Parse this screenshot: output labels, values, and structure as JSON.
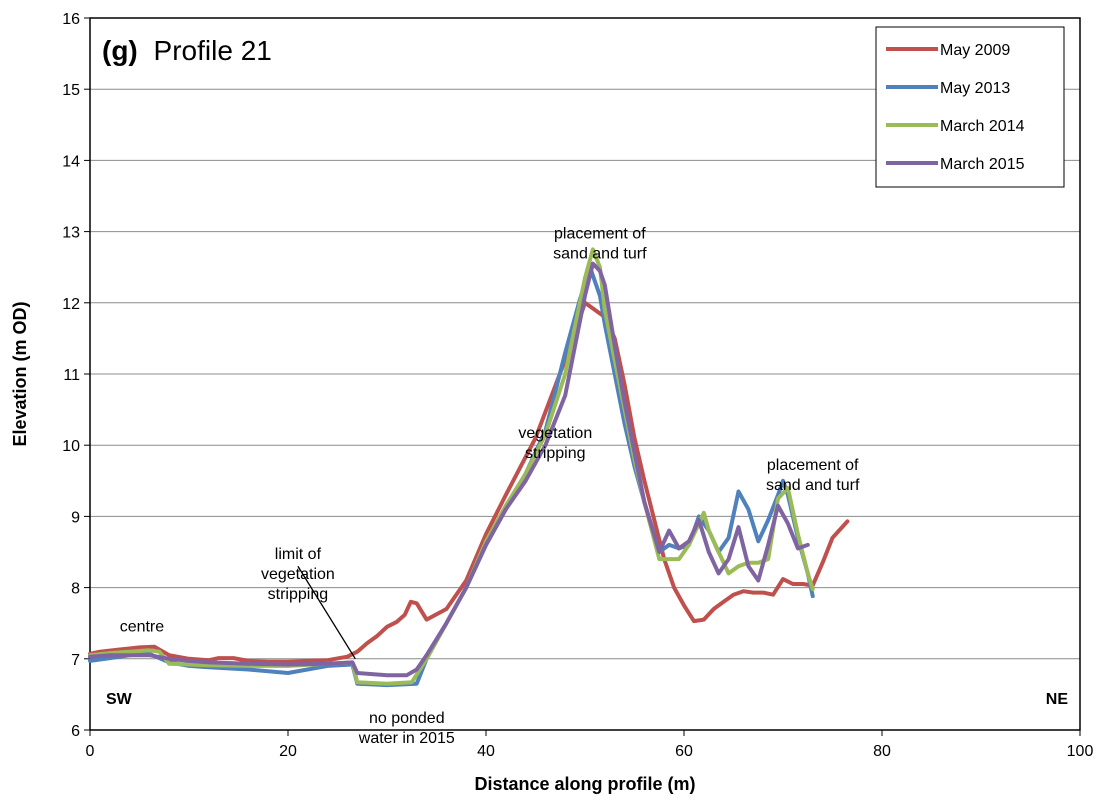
{
  "chart_data": {
    "type": "line",
    "title_letter": "(g)",
    "title_text": "Profile 21",
    "xlabel": "Distance along profile (m)",
    "ylabel": "Elevation (m OD)",
    "xlim": [
      0,
      100
    ],
    "ylim": [
      6,
      16
    ],
    "xticks": [
      0,
      20,
      40,
      60,
      80,
      100
    ],
    "yticks": [
      6,
      7,
      8,
      9,
      10,
      11,
      12,
      13,
      14,
      15,
      16
    ],
    "grid": "horizontal",
    "legend_position": "top-right",
    "corner_labels": {
      "left": "SW",
      "right": "NE"
    },
    "annotations": [
      {
        "lines": [
          "centre"
        ],
        "x": 3,
        "y": 7.38
      },
      {
        "lines": [
          "limit of",
          "vegetation",
          "stripping"
        ],
        "x": 21,
        "y": 8.4
      },
      {
        "lines": [
          "no ponded",
          "water in 2015"
        ],
        "x": 32,
        "y": 6.1
      },
      {
        "lines": [
          "vegetation",
          "stripping"
        ],
        "x": 47,
        "y": 10.1
      },
      {
        "lines": [
          "placement of",
          "sand and turf"
        ],
        "x": 51.5,
        "y": 12.9
      },
      {
        "lines": [
          "placement of",
          "sand and turf"
        ],
        "x": 73,
        "y": 9.65
      }
    ],
    "pointer": {
      "from": [
        21,
        8.3
      ],
      "to": [
        26.8,
        7.0
      ]
    },
    "series": [
      {
        "name": "May 2009",
        "color": "#c0504d",
        "x": [
          0,
          1,
          3,
          5,
          6.5,
          8,
          10,
          12,
          13,
          14.5,
          16,
          18,
          20,
          22,
          24,
          26,
          27,
          28,
          29,
          30,
          31,
          31.8,
          32.4,
          33,
          34,
          36,
          38,
          40,
          42,
          45,
          48,
          50,
          51,
          52,
          53,
          54,
          55,
          56,
          57,
          58,
          59,
          60,
          61,
          62,
          63,
          64,
          65,
          66,
          67,
          68,
          69,
          70,
          71,
          72,
          73,
          74,
          75,
          76.5
        ],
        "y": [
          7.07,
          7.1,
          7.13,
          7.16,
          7.17,
          7.05,
          7.0,
          6.98,
          7.01,
          7.01,
          6.97,
          6.96,
          6.96,
          6.97,
          6.98,
          7.03,
          7.1,
          7.22,
          7.32,
          7.45,
          7.52,
          7.62,
          7.8,
          7.78,
          7.55,
          7.7,
          8.1,
          8.75,
          9.3,
          10.1,
          11.2,
          12.0,
          11.9,
          11.8,
          11.5,
          10.85,
          10.1,
          9.5,
          8.95,
          8.4,
          8.0,
          7.75,
          7.53,
          7.55,
          7.7,
          7.8,
          7.9,
          7.95,
          7.93,
          7.93,
          7.9,
          8.12,
          8.05,
          8.05,
          8.03,
          8.35,
          8.7,
          8.93
        ]
      },
      {
        "name": "May 2013",
        "color": "#4f81bd",
        "x": [
          0,
          2,
          4,
          6,
          8,
          10,
          12,
          16,
          20,
          24,
          26.5,
          27,
          30,
          33,
          34,
          36,
          38,
          40,
          42,
          44,
          46,
          48,
          49.5,
          50.5,
          51.5,
          52,
          53,
          54,
          55,
          56,
          57.5,
          58.5,
          59.5,
          60.5,
          61.5,
          62.5,
          63.5,
          64.5,
          65.5,
          66.5,
          67.5,
          68.5,
          69.5,
          70,
          70.5,
          71.5,
          72.5,
          73
        ],
        "y": [
          6.97,
          7.01,
          7.05,
          7.07,
          6.95,
          6.9,
          6.88,
          6.85,
          6.8,
          6.9,
          6.92,
          6.65,
          6.63,
          6.65,
          7.0,
          7.5,
          8.0,
          8.6,
          9.1,
          9.6,
          10.2,
          11.3,
          12.05,
          12.5,
          12.1,
          11.7,
          11.0,
          10.3,
          9.7,
          9.2,
          8.5,
          8.6,
          8.55,
          8.6,
          9.0,
          8.8,
          8.5,
          8.7,
          9.35,
          9.1,
          8.65,
          8.95,
          9.3,
          9.5,
          9.3,
          8.7,
          8.2,
          7.88
        ]
      },
      {
        "name": "March 2014",
        "color": "#9bbb59",
        "x": [
          0,
          2,
          4,
          6,
          7,
          8,
          10,
          12,
          16,
          20,
          24,
          26.5,
          27,
          30,
          32.5,
          34,
          36,
          38,
          40,
          42,
          44,
          46,
          48,
          50,
          50.8,
          51.5,
          52,
          53,
          54,
          55,
          56,
          57.5,
          58.5,
          59.5,
          60.5,
          61.5,
          62,
          62.5,
          63.5,
          64.5,
          65.5,
          66.5,
          67.5,
          68.5,
          69.5,
          70.5,
          71.5,
          72.5,
          73
        ],
        "y": [
          7.05,
          7.08,
          7.1,
          7.12,
          7.1,
          6.93,
          6.92,
          6.91,
          6.9,
          6.9,
          6.93,
          6.95,
          6.67,
          6.65,
          6.67,
          7.0,
          7.5,
          8.0,
          8.65,
          9.15,
          9.6,
          10.15,
          11.0,
          12.35,
          12.75,
          12.5,
          11.9,
          11.2,
          10.5,
          9.8,
          9.2,
          8.4,
          8.4,
          8.4,
          8.6,
          8.9,
          9.05,
          8.8,
          8.5,
          8.2,
          8.3,
          8.35,
          8.35,
          8.4,
          9.25,
          9.4,
          8.75,
          8.2,
          7.98
        ]
      },
      {
        "name": "March 2015",
        "color": "#8064a2",
        "x": [
          0,
          2,
          4,
          6,
          8,
          10,
          12,
          16,
          20,
          24,
          26.5,
          27,
          30,
          32,
          33,
          34,
          36,
          38,
          40,
          42,
          44,
          46,
          48,
          50,
          50.8,
          51.5,
          52,
          53,
          54,
          55,
          56,
          57.5,
          58.5,
          59.5,
          60.5,
          61.5,
          62.5,
          63.5,
          64.5,
          65.5,
          66.5,
          67.5,
          68.5,
          69.5,
          70.5,
          71.5,
          72.5
        ],
        "y": [
          7.03,
          7.05,
          7.05,
          7.05,
          7.0,
          6.97,
          6.95,
          6.93,
          6.92,
          6.93,
          6.95,
          6.8,
          6.77,
          6.77,
          6.85,
          7.05,
          7.5,
          8.0,
          8.6,
          9.1,
          9.5,
          10.0,
          10.7,
          12.1,
          12.55,
          12.45,
          12.25,
          11.4,
          10.6,
          9.9,
          9.2,
          8.5,
          8.8,
          8.55,
          8.65,
          8.95,
          8.5,
          8.2,
          8.4,
          8.85,
          8.3,
          8.1,
          8.6,
          9.15,
          8.9,
          8.55,
          8.6
        ]
      }
    ]
  }
}
